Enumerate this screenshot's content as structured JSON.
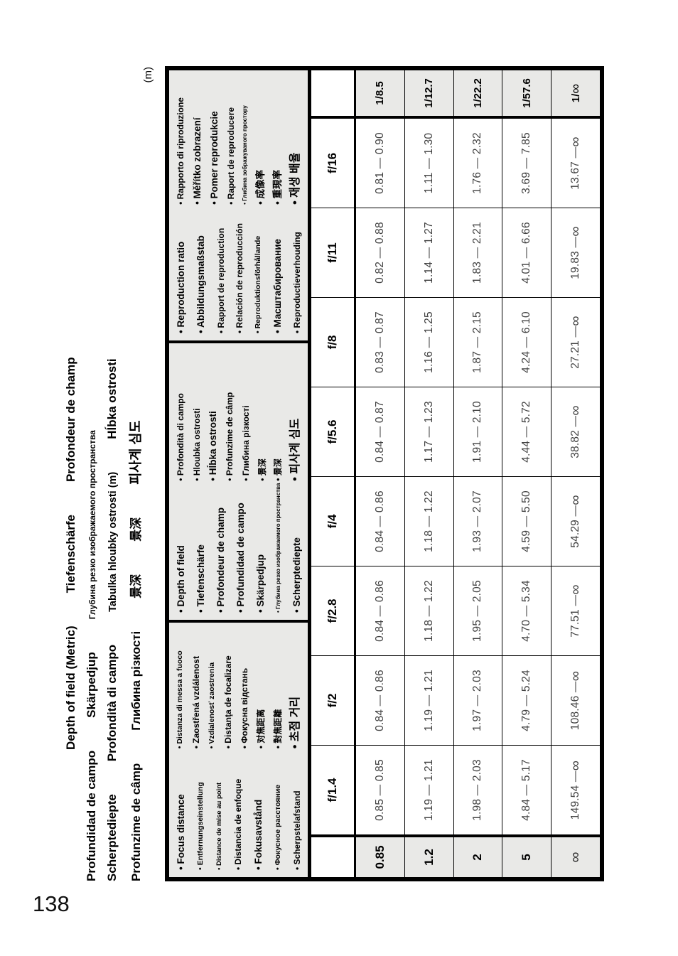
{
  "page_number": "138",
  "unit_label": "(m)",
  "header": {
    "lines": [
      {
        "indent": true,
        "items": [
          {
            "text": "Depth of field (Metric)",
            "size": "lg"
          },
          {
            "text": "Tiefenschärfe",
            "size": "lg"
          },
          {
            "text": "Profondeur de champ",
            "size": "lg"
          }
        ]
      },
      {
        "indent": false,
        "items": [
          {
            "text": "Profundidad de campo",
            "size": "lg"
          },
          {
            "text": "Skärpedjup",
            "size": "lg"
          },
          {
            "text": "Глубина резко изображаемого пространства",
            "size": "sm"
          }
        ]
      },
      {
        "indent": false,
        "items": [
          {
            "text": "Scherptediepte",
            "size": "lg"
          },
          {
            "text": "Profondità di campo",
            "size": "lg"
          },
          {
            "text": "Tabulka hloubky ostrosti (m)",
            "size": "md"
          },
          {
            "text": "Hĺbka ostrosti",
            "size": "lg"
          }
        ]
      },
      {
        "indent": false,
        "items": [
          {
            "text": "Profunzime de câmp",
            "size": "lg"
          },
          {
            "text": "Глибина різкості",
            "size": "lg"
          },
          {
            "text": "景深",
            "size": "lg"
          },
          {
            "text": "景深",
            "size": "lg"
          },
          {
            "text": "피사계 심도",
            "size": "xl"
          }
        ]
      }
    ]
  },
  "table": {
    "separator": "—",
    "focus_languages": {
      "col1": [
        {
          "text": "Focus distance",
          "size": "lg"
        },
        {
          "text": "Entfernungseinstellung",
          "size": "sm"
        },
        {
          "text": "Distance de mise au point",
          "size": "xs"
        },
        {
          "text": "Distancia de enfoque",
          "size": "md"
        },
        {
          "text": "Fokusavstånd",
          "size": "lg"
        },
        {
          "text": "Фокусное расстояние",
          "size": "sm"
        },
        {
          "text": "Scherpstelafstand",
          "size": "md"
        }
      ],
      "col2": [
        {
          "text": "Distanza di messa a fuoco",
          "size": "sm"
        },
        {
          "text": "Zaostřená vzdálenost",
          "size": "md"
        },
        {
          "text": "Vzdialenosť zaostrenia",
          "size": "sm"
        },
        {
          "text": "Distanţa de focalizare",
          "size": "md"
        },
        {
          "text": "Фокусна відстань",
          "size": "md"
        },
        {
          "text": "对焦距离",
          "size": "md"
        },
        {
          "text": "對焦距離",
          "size": "md"
        },
        {
          "text": "초점 거리",
          "size": "xl"
        }
      ]
    },
    "dof_languages": {
      "col1": [
        {
          "text": "Depth of field",
          "size": "lg"
        },
        {
          "text": "Tiefenschärfe",
          "size": "lg"
        },
        {
          "text": "Profondeur de champ",
          "size": "lg"
        },
        {
          "text": "Profundidad de campo",
          "size": "lg"
        },
        {
          "text": "Skärpedjup",
          "size": "lg"
        },
        {
          "text": "Глубина резко изображаемого пространства",
          "size": "xxs"
        },
        {
          "text": "Scherptediepte",
          "size": "lg"
        }
      ],
      "col2": [
        {
          "text": "Profondità di campo",
          "size": "md"
        },
        {
          "text": "Hloubka ostrosti",
          "size": "md"
        },
        {
          "text": "Hĺbka ostrosti",
          "size": "lg"
        },
        {
          "text": "Profunzime de câmp",
          "size": "md"
        },
        {
          "text": "Глибина різкості",
          "size": "md"
        },
        {
          "text": "景深",
          "size": "md"
        },
        {
          "text": "景深",
          "size": "md"
        },
        {
          "text": "피사계 심도",
          "size": "xl"
        }
      ]
    },
    "ratio_languages": {
      "col1": [
        {
          "text": "Reproduction ratio",
          "size": "lg"
        },
        {
          "text": "Abbildungsmaßstab",
          "size": "lg"
        },
        {
          "text": "Rapport de reproduction",
          "size": "md"
        },
        {
          "text": "Relación de reproducción",
          "size": "md"
        },
        {
          "text": "Reproduktionsförhållande",
          "size": "sm"
        },
        {
          "text": "Масштабирование",
          "size": "lg"
        },
        {
          "text": "Reproductieverhouding",
          "size": "md"
        }
      ],
      "col2": [
        {
          "text": "Rapporto di riproduzione",
          "size": "md"
        },
        {
          "text": "Měřítko zobrazení",
          "size": "lg"
        },
        {
          "text": "Pomer reprodukcie",
          "size": "lg"
        },
        {
          "text": "Raport de reproducere",
          "size": "md"
        },
        {
          "text": "Глибина зображуваного простору",
          "size": "xxs"
        },
        {
          "text": "成像率",
          "size": "lg"
        },
        {
          "text": "重現率",
          "size": "lg"
        },
        {
          "text": "재생 배율",
          "size": "xl"
        }
      ]
    },
    "f_labels": [
      "f/1.4",
      "f/2",
      "f/2.8",
      "f/4",
      "f/5.6",
      "f/8",
      "f/11",
      "f/16"
    ],
    "rows": [
      {
        "focus": "0.85",
        "ranges": [
          [
            "0.85",
            "0.85"
          ],
          [
            "0.84",
            "0.86"
          ],
          [
            "0.84",
            "0.86"
          ],
          [
            "0.84",
            "0.86"
          ],
          [
            "0.84",
            "0.87"
          ],
          [
            "0.83",
            "0.87"
          ],
          [
            "0.82",
            "0.88"
          ],
          [
            "0.81",
            "0.90"
          ]
        ],
        "ratio": "1/8.5"
      },
      {
        "focus": "1.2",
        "ranges": [
          [
            "1.19",
            "1.21"
          ],
          [
            "1.19",
            "1.21"
          ],
          [
            "1.18",
            "1.22"
          ],
          [
            "1.18",
            "1.22"
          ],
          [
            "1.17",
            "1.23"
          ],
          [
            "1.16",
            "1.25"
          ],
          [
            "1.14",
            "1.27"
          ],
          [
            "1.11",
            "1.30"
          ]
        ],
        "ratio": "1/12.7"
      },
      {
        "focus": "2",
        "ranges": [
          [
            "1.98",
            "2.03"
          ],
          [
            "1.97",
            "2.03"
          ],
          [
            "1.95",
            "2.05"
          ],
          [
            "1.93",
            "2.07"
          ],
          [
            "1.91",
            "2.10"
          ],
          [
            "1.87",
            "2.15"
          ],
          [
            "1.83",
            "2.21"
          ],
          [
            "1.76",
            "2.32"
          ]
        ],
        "ratio": "1/22.2"
      },
      {
        "focus": "5",
        "ranges": [
          [
            "4.84",
            "5.17"
          ],
          [
            "4.79",
            "5.24"
          ],
          [
            "4.70",
            "5.34"
          ],
          [
            "4.59",
            "5.50"
          ],
          [
            "4.44",
            "5.72"
          ],
          [
            "4.24",
            "6.10"
          ],
          [
            "4.01",
            "6.66"
          ],
          [
            "3.69",
            "7.85"
          ]
        ],
        "ratio": "1/57.6"
      },
      {
        "focus": "∞",
        "ranges": [
          [
            "149.54",
            "∞"
          ],
          [
            "108.46",
            "∞"
          ],
          [
            "77.51",
            "∞"
          ],
          [
            "54.29",
            "∞"
          ],
          [
            "38.82",
            "∞"
          ],
          [
            "27.21",
            "∞"
          ],
          [
            "19.83",
            "∞"
          ],
          [
            "13.67",
            "∞"
          ]
        ],
        "ratio": "1/∞"
      }
    ]
  },
  "colors": {
    "cell_gray": "#e9e9e7",
    "border_black": "#000000",
    "data_text": "#414141"
  }
}
